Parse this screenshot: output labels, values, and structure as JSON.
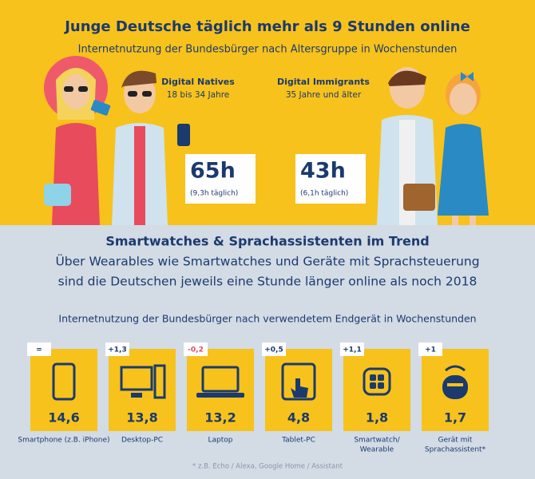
{
  "header": {
    "title": "Junge Deutsche täglich mehr als 9 Stunden online",
    "subtitle": "Internetnutzung der Bundesbürger nach Altersgruppe in Wochenstunden"
  },
  "groups": [
    {
      "name": "Digital Natives",
      "age": "18 bis 34 Jahre",
      "hours": "65h",
      "daily": "(9,3h täglich)"
    },
    {
      "name": "Digital Immigrants",
      "age": "35 Jahre und älter",
      "hours": "43h",
      "daily": "(6,1h täglich)"
    }
  ],
  "trend": {
    "title": "Smartwatches & Sprachassistenten im Trend",
    "text": [
      "Über Wearables wie Smartwatches und Geräte mit Sprachsteuerung",
      "sind die Deutschen jeweils eine Stunde länger online als noch 2018"
    ],
    "subtitle": "Internetnutzung der Bundesbürger nach verwendetem Endgerät in Wochenstunden"
  },
  "devices": [
    {
      "change": "=",
      "value": "14,6",
      "label": [
        "Smartphone (z.B. iPhone)"
      ]
    },
    {
      "change": "+1,3",
      "value": "13,8",
      "label": [
        "Desktop-PC"
      ]
    },
    {
      "change": "-0,2",
      "value": "13,2",
      "label": [
        "Laptop"
      ]
    },
    {
      "change": "+0,5",
      "value": "4,8",
      "label": [
        "Tablet-PC"
      ]
    },
    {
      "change": "+1,1",
      "value": "1,8",
      "label": [
        "Smartwatch/",
        "Wearable"
      ]
    },
    {
      "change": "+1",
      "value": "1,7",
      "label": [
        "Gerät mit",
        "Sprachassistent*"
      ]
    }
  ],
  "footnote": "* z.B. Echo / Alexa, Google Home / Assistant"
}
